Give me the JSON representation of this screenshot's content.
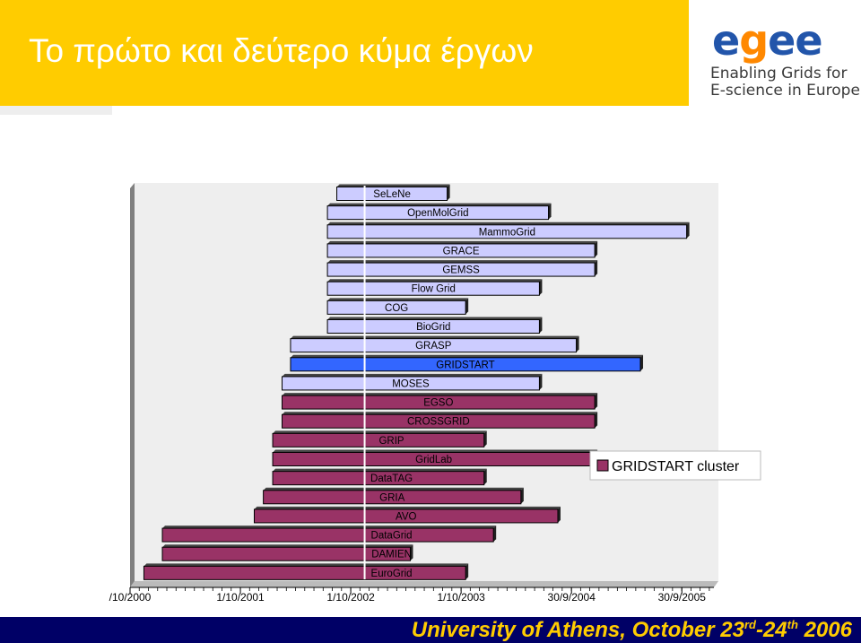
{
  "slide": {
    "title": "Το πρώτο και δεύτερο κύμα έργων",
    "logo": {
      "word_prefix": "e",
      "word_middle": "g",
      "word_suffix": "ee",
      "line1": "Enabling Grids for",
      "line2": "E-science in Europe"
    },
    "footer": {
      "prefix": "University of Athens, October 23",
      "sup1": "rd",
      "middle": "-24",
      "sup2": "th",
      "suffix": " 2006"
    }
  },
  "colors": {
    "header": "#ffcc00",
    "footer_bg": "#000066",
    "footer_text": "#ffcc00",
    "first_wave": "#993366",
    "second_wave": "#ccccff",
    "gridstart": "#3366ff",
    "marker": "#ffffff"
  },
  "chart_data": {
    "type": "gantt",
    "title": "",
    "x_ticks": [
      "/10/2000",
      "1/10/2001",
      "1/10/2002",
      "1/10/2003",
      "30/9/2004",
      "30/9/2005"
    ],
    "x_range": [
      "2000-10-01",
      "2006-01-14"
    ],
    "grid": false,
    "marker_date": "2002-11-01",
    "legend": {
      "label": "GRIDSTART cluster",
      "position": "right"
    },
    "tasks": [
      {
        "name": "SeLeNe",
        "start": "2002-08-01",
        "end": "2003-08-01",
        "group": "second"
      },
      {
        "name": "OpenMolGrid",
        "start": "2002-07-01",
        "end": "2004-07-01",
        "group": "second"
      },
      {
        "name": "MammoGrid",
        "start": "2002-07-01",
        "end": "2005-10-01",
        "group": "second"
      },
      {
        "name": "GRACE",
        "start": "2002-07-01",
        "end": "2004-12-01",
        "group": "second"
      },
      {
        "name": "GEMSS",
        "start": "2002-07-01",
        "end": "2004-12-01",
        "group": "second"
      },
      {
        "name": "Flow Grid",
        "start": "2002-07-01",
        "end": "2004-06-01",
        "group": "second"
      },
      {
        "name": "COG",
        "start": "2002-07-01",
        "end": "2003-10-01",
        "group": "second"
      },
      {
        "name": "BioGrid",
        "start": "2002-07-01",
        "end": "2004-06-01",
        "group": "second"
      },
      {
        "name": "GRASP",
        "start": "2002-03-01",
        "end": "2004-10-01",
        "group": "second"
      },
      {
        "name": "GRIDSTART",
        "start": "2002-03-01",
        "end": "2005-05-01",
        "group": "gridstart"
      },
      {
        "name": "MOSES",
        "start": "2002-02-01",
        "end": "2004-06-01",
        "group": "second"
      },
      {
        "name": "EGSO",
        "start": "2002-02-01",
        "end": "2004-12-01",
        "group": "first"
      },
      {
        "name": "CROSSGRID",
        "start": "2002-02-01",
        "end": "2004-12-01",
        "group": "first"
      },
      {
        "name": "GRIP",
        "start": "2002-01-01",
        "end": "2003-12-01",
        "group": "first"
      },
      {
        "name": "GridLab",
        "start": "2002-01-01",
        "end": "2004-12-01",
        "group": "first"
      },
      {
        "name": "DataTAG",
        "start": "2002-01-01",
        "end": "2003-12-01",
        "group": "first"
      },
      {
        "name": "GRIA",
        "start": "2001-12-01",
        "end": "2004-04-01",
        "group": "first"
      },
      {
        "name": "AVO",
        "start": "2001-11-01",
        "end": "2004-08-01",
        "group": "first"
      },
      {
        "name": "DataGrid",
        "start": "2001-01-01",
        "end": "2004-01-01",
        "group": "first"
      },
      {
        "name": "DAMIEN",
        "start": "2001-01-01",
        "end": "2003-04-01",
        "group": "first"
      },
      {
        "name": "EuroGrid",
        "start": "2000-11-01",
        "end": "2003-10-01",
        "group": "first"
      }
    ]
  }
}
